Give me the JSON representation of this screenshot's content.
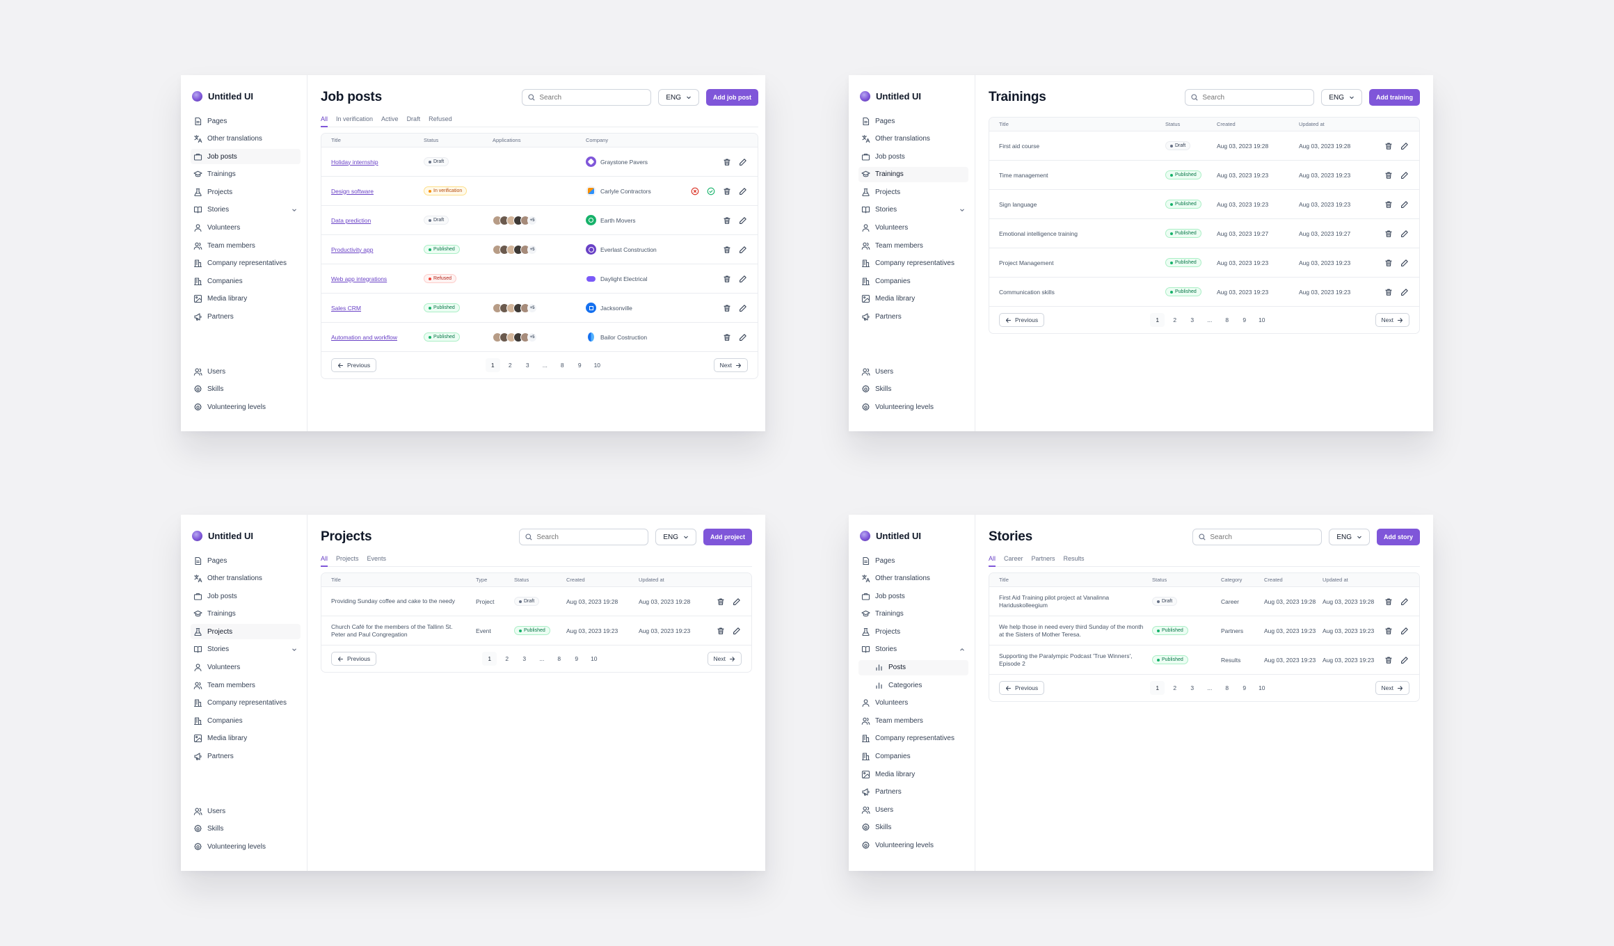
{
  "brand": "Untitled UI",
  "nav_icons": [
    "pages-icon",
    "translate-icon",
    "briefcase-icon",
    "graduation-cap-icon",
    "flask-icon",
    "book-open-icon",
    "users-icon",
    "user-group-icon",
    "building-icon",
    "building-icon",
    "image-icon",
    "megaphone-icon"
  ],
  "bottom_icons": [
    "user-icon",
    "settings-icon",
    "settings-icon"
  ],
  "nav": {
    "pages": "Pages",
    "other_translations": "Other translations",
    "job_posts": "Job posts",
    "trainings": "Trainings",
    "projects": "Projects",
    "stories": "Stories",
    "volunteers": "Volunteers",
    "team_members": "Team members",
    "company_representatives": "Company representatives",
    "companies": "Companies",
    "media_library": "Media library",
    "partners": "Partners",
    "users": "Users",
    "skills": "Skills",
    "volunteering_levels": "Volunteering levels",
    "stories_posts": "Posts",
    "stories_categories": "Categories"
  },
  "common": {
    "search_placeholder": "Search",
    "lang": "ENG",
    "previous": "Previous",
    "next": "Next",
    "pages": [
      "1",
      "2",
      "3",
      "...",
      "8",
      "9",
      "10"
    ],
    "accent": "#7f56d9"
  },
  "job_posts": {
    "title": "Job posts",
    "add_button": "Add job post",
    "tabs": [
      "All",
      "In verification",
      "Active",
      "Draft",
      "Refused"
    ],
    "columns": {
      "title": "Title",
      "status": "Status",
      "applications": "Applications",
      "company": "Company"
    },
    "rows": [
      {
        "title": "Holiday internship",
        "status": "Draft",
        "applications": "",
        "company": "Graystone Pavers"
      },
      {
        "title": "Design software",
        "status": "In verification",
        "applications": "",
        "company": "Carlyle Contractors"
      },
      {
        "title": "Data prediction",
        "status": "Draft",
        "applications": "+5",
        "company": "Earth Movers"
      },
      {
        "title": "Productivity app",
        "status": "Published",
        "applications": "+5",
        "company": "Everlast Construction"
      },
      {
        "title": "Web app integrations",
        "status": "Refused",
        "applications": "",
        "company": "Daylight Electrical"
      },
      {
        "title": "Sales CRM",
        "status": "Published",
        "applications": "+5",
        "company": "Jacksonville"
      },
      {
        "title": "Automation and workflow",
        "status": "Published",
        "applications": "+5",
        "company": "Bailor Costruction"
      }
    ]
  },
  "trainings": {
    "title": "Trainings",
    "add_button": "Add training",
    "columns": {
      "title": "Title",
      "status": "Status",
      "created": "Created",
      "updated": "Updated at"
    },
    "rows": [
      {
        "title": "First aid course",
        "status": "Draft",
        "created": "Aug 03, 2023 19:28",
        "updated": "Aug 03, 2023 19:28"
      },
      {
        "title": "Time management",
        "status": "Published",
        "created": "Aug 03, 2023 19:23",
        "updated": "Aug 03, 2023 19:23"
      },
      {
        "title": "Sign language",
        "status": "Published",
        "created": "Aug 03, 2023 19:23",
        "updated": "Aug 03, 2023 19:23"
      },
      {
        "title": "Emotional intelligence training",
        "status": "Published",
        "created": "Aug 03, 2023 19:27",
        "updated": "Aug 03, 2023 19:27"
      },
      {
        "title": "Project Management",
        "status": "Published",
        "created": "Aug 03, 2023 19:23",
        "updated": "Aug 03, 2023 19:23"
      },
      {
        "title": "Communication skills",
        "status": "Published",
        "created": "Aug 03, 2023 19:23",
        "updated": "Aug 03, 2023 19:23"
      }
    ]
  },
  "projects": {
    "title": "Projects",
    "add_button": "Add project",
    "tabs": [
      "All",
      "Projects",
      "Events"
    ],
    "columns": {
      "title": "Title",
      "type": "Type",
      "status": "Status",
      "created": "Created",
      "updated": "Updated at"
    },
    "rows": [
      {
        "title": "Providing Sunday coffee and cake to the needy",
        "type": "Project",
        "status": "Draft",
        "created": "Aug 03, 2023 19:28",
        "updated": "Aug 03, 2023 19:28"
      },
      {
        "title": "Church Café for the members of the Tallinn St. Peter and Paul Congregation",
        "type": "Event",
        "status": "Published",
        "created": "Aug 03, 2023 19:23",
        "updated": "Aug 03, 2023 19:23"
      }
    ]
  },
  "stories": {
    "title": "Stories",
    "add_button": "Add story",
    "tabs": [
      "All",
      "Career",
      "Partners",
      "Results"
    ],
    "columns": {
      "title": "Title",
      "status": "Status",
      "category": "Category",
      "created": "Created",
      "updated": "Updated at"
    },
    "rows": [
      {
        "title": "First Aid Training pilot project at Vanalinna Hariduskolleegium",
        "status": "Draft",
        "category": "Career",
        "created": "Aug 03, 2023 19:28",
        "updated": "Aug 03, 2023 19:28"
      },
      {
        "title": "We help those in need every third Sunday of the month at the Sisters of Mother Teresa.",
        "status": "Published",
        "category": "Partners",
        "created": "Aug 03, 2023 19:23",
        "updated": "Aug 03, 2023 19:23"
      },
      {
        "title": "Supporting the Paralympic Podcast 'True Winners', Episode 2",
        "status": "Published",
        "category": "Results",
        "created": "Aug 03, 2023 19:23",
        "updated": "Aug 03, 2023 19:23"
      }
    ]
  }
}
